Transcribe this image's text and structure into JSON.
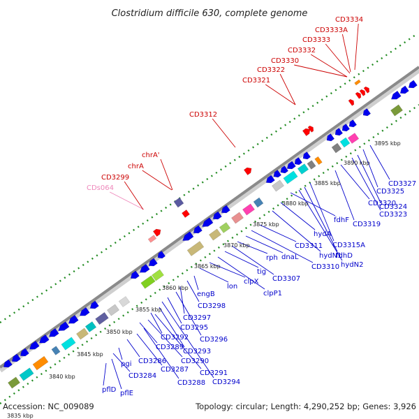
{
  "title": "Clostridium difficile 630, complete genome",
  "footer": {
    "accession": "Accession: NC_009089",
    "stats": "Topology: circular; Length: 4,290,252 bp; Genes: 3,926"
  },
  "colors": {
    "backbone": "#8a8a8a",
    "dots": "#228b22",
    "forward_label": "#cc0000",
    "pseudo_label": "#ee88bb",
    "reverse_label": "#0000cc",
    "forward_gene": "#ff0000",
    "reverse_gene": "#0000ee"
  },
  "ticks": [
    "3835 kbp",
    "3840 kbp",
    "3845 kbp",
    "3850 kbp",
    "3855 kbp",
    "3860 kbp",
    "3865 kbp",
    "3870 kbp",
    "3875 kbp",
    "3880 kbp",
    "3885 kbp",
    "3890 kbp",
    "3895 kbp"
  ],
  "forward_labels": [
    "CDs064",
    "CD3299",
    "chrA",
    "chrA'",
    "CD3312",
    "CD3321",
    "CD3322",
    "CD3330",
    "CD3332",
    "CD3333",
    "CD3333A",
    "CD3334"
  ],
  "reverse_labels": [
    "pflD",
    "pflE",
    "CD3284",
    "pgi",
    "CD3286",
    "CD3287",
    "CD3288",
    "CD3289",
    "CD3290",
    "CD3291",
    "CD3292",
    "CD3293",
    "CD3294",
    "CD3295",
    "CD3296",
    "CD3297",
    "CD3298",
    "engB",
    "lon",
    "clpX",
    "clpP1",
    "tig",
    "CD3307",
    "rph",
    "dnaL",
    "CD3310",
    "CD3311",
    "hydN1",
    "hydA",
    "fdhF",
    "hydN2",
    "fdhD",
    "CD3315A",
    "CD3319",
    "CD3320",
    "CD3323",
    "CD3324",
    "CD3325",
    "CD3327"
  ]
}
